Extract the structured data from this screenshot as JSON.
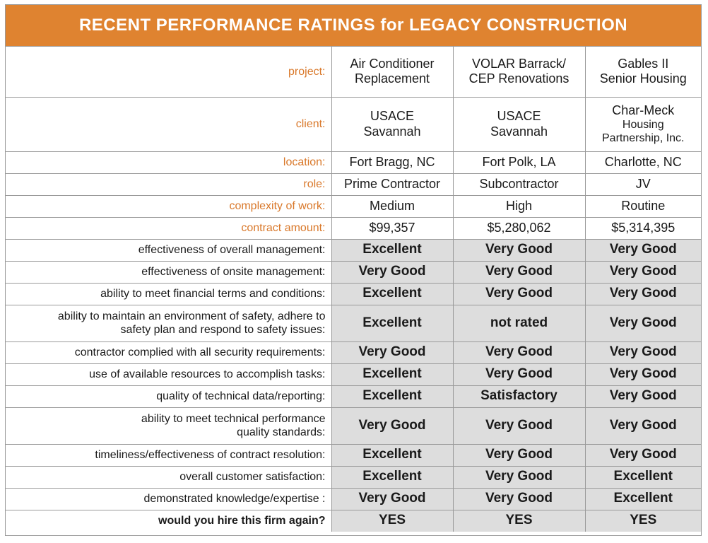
{
  "title": "RECENT PERFORMANCE RATINGS for LEGACY CONSTRUCTION",
  "info_rows": [
    {
      "label": "project:",
      "values": [
        [
          "Air Conditioner",
          "Replacement"
        ],
        [
          "VOLAR Barrack/",
          "CEP Renovations"
        ],
        [
          "Gables II",
          "Senior Housing"
        ]
      ]
    },
    {
      "label": "client:",
      "values": [
        [
          "USACE",
          "Savannah"
        ],
        [
          "USACE",
          "Savannah"
        ],
        [
          "Char-Meck",
          "Housing",
          "Partnership, Inc."
        ]
      ]
    },
    {
      "label": "location:",
      "values": [
        [
          "Fort Bragg, NC"
        ],
        [
          "Fort Polk, LA"
        ],
        [
          "Charlotte, NC"
        ]
      ]
    },
    {
      "label": "role:",
      "values": [
        [
          "Prime Contractor"
        ],
        [
          "Subcontractor"
        ],
        [
          "JV"
        ]
      ]
    },
    {
      "label": "complexity of work:",
      "values": [
        [
          "Medium"
        ],
        [
          "High"
        ],
        [
          "Routine"
        ]
      ]
    },
    {
      "label": "contract amount:",
      "values": [
        [
          "$99,357"
        ],
        [
          "$5,280,062"
        ],
        [
          "$5,314,395"
        ]
      ]
    }
  ],
  "rating_rows": [
    {
      "label": [
        "effectiveness of overall management:"
      ],
      "values": [
        "Excellent",
        "Very Good",
        "Very Good"
      ]
    },
    {
      "label": [
        "effectiveness of onsite management:"
      ],
      "values": [
        "Very Good",
        "Very Good",
        "Very Good"
      ]
    },
    {
      "label": [
        "ability to meet financial terms and conditions:"
      ],
      "values": [
        "Excellent",
        "Very Good",
        "Very Good"
      ]
    },
    {
      "label": [
        "ability to maintain an environment of safety, adhere to",
        "safety plan and respond to safety issues:"
      ],
      "values": [
        "Excellent",
        "not rated",
        "Very Good"
      ]
    },
    {
      "label": [
        "contractor complied with all security requirements:"
      ],
      "values": [
        "Very Good",
        "Very Good",
        "Very Good"
      ]
    },
    {
      "label": [
        "use of available resources to accomplish tasks:"
      ],
      "values": [
        "Excellent",
        "Very Good",
        "Very Good"
      ]
    },
    {
      "label": [
        "quality of technical data/reporting:"
      ],
      "values": [
        "Excellent",
        "Satisfactory",
        "Very Good"
      ]
    },
    {
      "label": [
        "ability to meet technical performance",
        "quality standards:"
      ],
      "values": [
        "Very Good",
        "Very Good",
        "Very Good"
      ]
    },
    {
      "label": [
        "timeliness/effectiveness of contract resolution:"
      ],
      "values": [
        "Excellent",
        "Very Good",
        "Very Good"
      ]
    },
    {
      "label": [
        "overall customer satisfaction:"
      ],
      "values": [
        "Excellent",
        "Very Good",
        "Excellent"
      ]
    },
    {
      "label": [
        "demonstrated knowledge/expertise :"
      ],
      "values": [
        "Very Good",
        "Very Good",
        "Excellent"
      ]
    },
    {
      "label": [
        "would you hire this firm again?"
      ],
      "values": [
        "YES",
        "YES",
        "YES"
      ],
      "bold_label": true
    }
  ],
  "colors": {
    "header_bg": "#df8330",
    "label_orange": "#d9782a",
    "rating_bg": "#dddddd"
  }
}
